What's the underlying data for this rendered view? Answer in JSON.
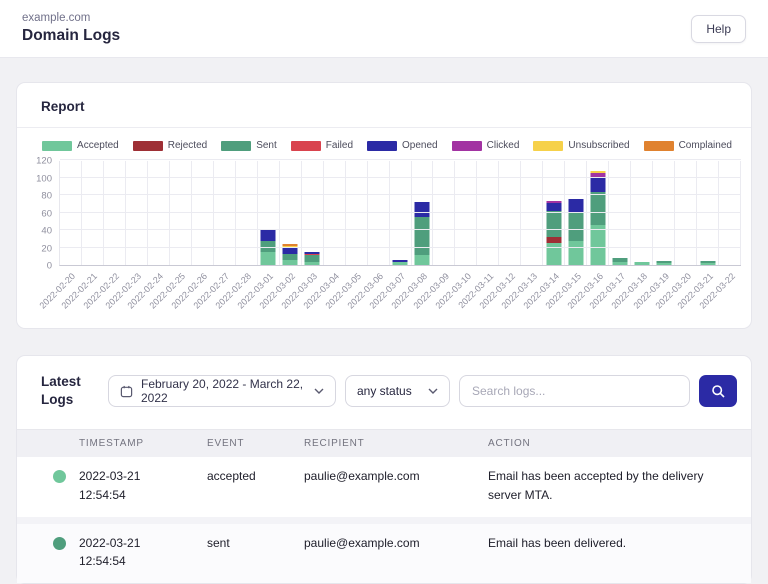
{
  "header": {
    "domain": "example.com",
    "title": "Domain Logs",
    "help_label": "Help"
  },
  "report": {
    "title": "Report"
  },
  "chart_data": {
    "type": "bar",
    "stacked": true,
    "title": "",
    "xlabel": "",
    "ylabel": "",
    "ylim": [
      0,
      120
    ],
    "yticks": [
      0,
      20,
      40,
      60,
      80,
      100,
      120
    ],
    "grid": true,
    "legend_position": "top",
    "categories": [
      "2022-02-20",
      "2022-02-21",
      "2022-02-22",
      "2022-02-23",
      "2022-02-24",
      "2022-02-25",
      "2022-02-26",
      "2022-02-27",
      "2022-02-28",
      "2022-03-01",
      "2022-03-02",
      "2022-03-03",
      "2022-03-04",
      "2022-03-05",
      "2022-03-06",
      "2022-03-07",
      "2022-03-08",
      "2022-03-09",
      "2022-03-10",
      "2022-03-11",
      "2022-03-12",
      "2022-03-13",
      "2022-03-14",
      "2022-03-15",
      "2022-03-16",
      "2022-03-17",
      "2022-03-18",
      "2022-03-19",
      "2022-03-20",
      "2022-03-21",
      "2022-03-22"
    ],
    "series": [
      {
        "name": "Accepted",
        "color": "#70c79b",
        "values": [
          0,
          0,
          0,
          0,
          0,
          0,
          0,
          0,
          0,
          15,
          6,
          4,
          0,
          0,
          0,
          4,
          11,
          0,
          0,
          0,
          0,
          0,
          25,
          27,
          46,
          4,
          3,
          2,
          0,
          2,
          0
        ]
      },
      {
        "name": "Rejected",
        "color": "#9e2f35",
        "values": [
          0,
          0,
          0,
          0,
          0,
          0,
          0,
          0,
          0,
          0,
          0,
          0,
          0,
          0,
          0,
          0,
          0,
          0,
          0,
          0,
          0,
          0,
          7,
          0,
          0,
          0,
          0,
          0,
          0,
          0,
          0
        ]
      },
      {
        "name": "Sent",
        "color": "#4f9e7d",
        "values": [
          0,
          0,
          0,
          0,
          0,
          0,
          0,
          0,
          0,
          12,
          7,
          7,
          0,
          0,
          0,
          0,
          44,
          0,
          0,
          0,
          0,
          0,
          30,
          34,
          38,
          4,
          0,
          3,
          0,
          3,
          0
        ]
      },
      {
        "name": "Failed",
        "color": "#d9434e",
        "values": [
          0,
          0,
          0,
          0,
          0,
          0,
          0,
          0,
          0,
          0,
          0,
          2,
          0,
          0,
          0,
          0,
          0,
          0,
          0,
          0,
          0,
          0,
          0,
          0,
          0,
          0,
          0,
          0,
          0,
          0,
          0
        ]
      },
      {
        "name": "Opened",
        "color": "#2b2aa5",
        "values": [
          0,
          0,
          0,
          0,
          0,
          0,
          0,
          0,
          0,
          13,
          8,
          2,
          0,
          0,
          0,
          2,
          17,
          0,
          0,
          0,
          0,
          0,
          9,
          15,
          17,
          0,
          0,
          0,
          0,
          0,
          0
        ]
      },
      {
        "name": "Clicked",
        "color": "#a233a2",
        "values": [
          0,
          0,
          0,
          0,
          0,
          0,
          0,
          0,
          0,
          0,
          0,
          0,
          0,
          0,
          0,
          0,
          0,
          0,
          0,
          0,
          0,
          0,
          2,
          0,
          4,
          0,
          0,
          0,
          0,
          0,
          0
        ]
      },
      {
        "name": "Unsubscribed",
        "color": "#f6d14a",
        "values": [
          0,
          0,
          0,
          0,
          0,
          0,
          0,
          0,
          0,
          0,
          1,
          0,
          0,
          0,
          0,
          0,
          0,
          0,
          0,
          0,
          0,
          0,
          0,
          0,
          3,
          0,
          0,
          0,
          0,
          0,
          0
        ]
      },
      {
        "name": "Complained",
        "color": "#e0822f",
        "values": [
          0,
          0,
          0,
          0,
          0,
          0,
          0,
          0,
          0,
          0,
          2,
          0,
          0,
          0,
          0,
          0,
          0,
          0,
          0,
          0,
          0,
          0,
          0,
          0,
          0,
          0,
          0,
          0,
          0,
          0,
          0
        ]
      }
    ]
  },
  "logs": {
    "title": "Latest Logs",
    "date_range": "February 20, 2022 - March 22, 2022",
    "status_filter": "any status",
    "search_placeholder": "Search logs...",
    "table": {
      "columns": [
        "TIMESTAMP",
        "EVENT",
        "RECIPIENT",
        "ACTION"
      ],
      "rows": [
        {
          "dot_color": "#70c79b",
          "date": "2022-03-21",
          "time": "12:54:54",
          "event": "accepted",
          "recipient": "paulie@example.com",
          "action": "Email has been accepted by the delivery server MTA."
        },
        {
          "dot_color": "#4f9e7d",
          "date": "2022-03-21",
          "time": "12:54:54",
          "event": "sent",
          "recipient": "paulie@example.com",
          "action": "Email has been delivered."
        }
      ]
    }
  },
  "colors": {
    "accent": "#2b2aa5",
    "page_background": "#f1f1f4"
  }
}
